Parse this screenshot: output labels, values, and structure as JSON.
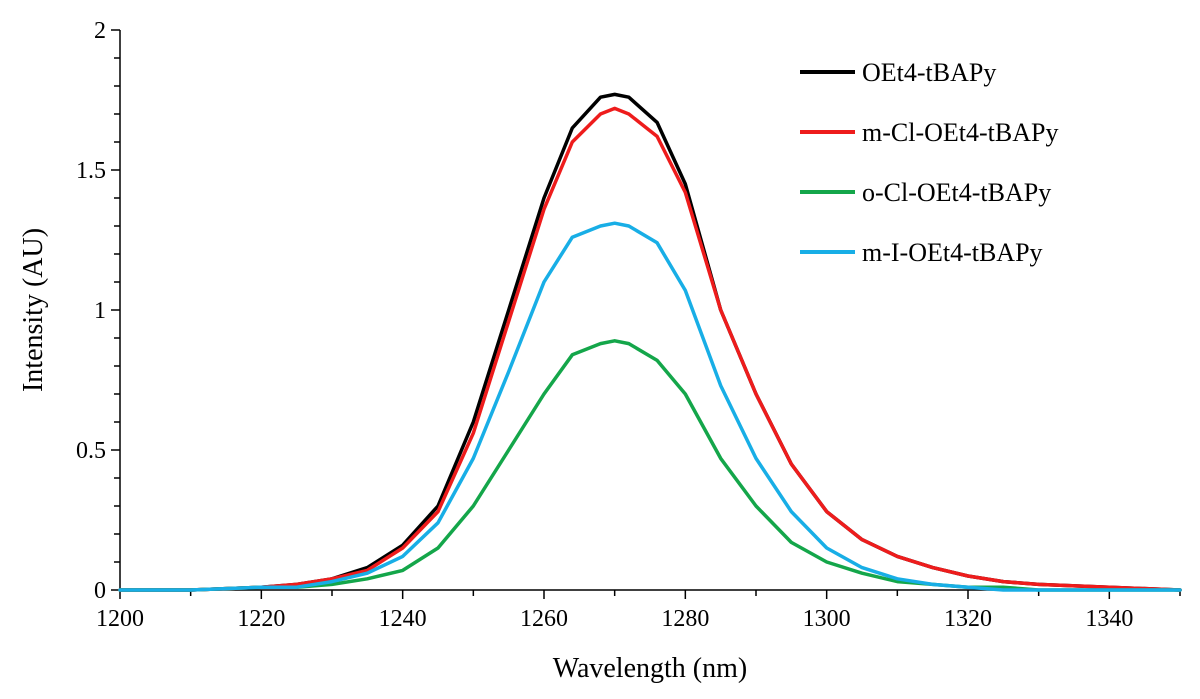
{
  "chart_data": {
    "type": "line",
    "title": "",
    "xlabel": "Wavelength (nm)",
    "ylabel": "Intensity (AU)",
    "xlim": [
      1200,
      1350
    ],
    "ylim": [
      0,
      2
    ],
    "x_ticks": [
      1200,
      1220,
      1240,
      1260,
      1280,
      1300,
      1320,
      1340
    ],
    "y_ticks": [
      0,
      0.5,
      1,
      1.5,
      2
    ],
    "y_tick_labels": [
      "0",
      "0.5",
      "1",
      "1.5",
      "2"
    ],
    "grid": false,
    "legend_position": "top-right",
    "x": [
      1200,
      1210,
      1220,
      1225,
      1230,
      1235,
      1240,
      1245,
      1250,
      1255,
      1260,
      1264,
      1268,
      1270,
      1272,
      1276,
      1280,
      1285,
      1290,
      1295,
      1300,
      1305,
      1310,
      1315,
      1320,
      1325,
      1330,
      1340,
      1350
    ],
    "series": [
      {
        "name": "OEt4-tBAPy",
        "color": "#000000",
        "values": [
          0.0,
          0.0,
          0.01,
          0.02,
          0.04,
          0.08,
          0.16,
          0.3,
          0.6,
          1.0,
          1.4,
          1.65,
          1.76,
          1.77,
          1.76,
          1.67,
          1.45,
          1.0,
          0.7,
          0.45,
          0.28,
          0.18,
          0.12,
          0.08,
          0.05,
          0.03,
          0.02,
          0.01,
          0.0
        ]
      },
      {
        "name": "m-Cl-OEt4-tBAPy",
        "color": "#ee1c1c",
        "values": [
          0.0,
          0.0,
          0.01,
          0.02,
          0.04,
          0.07,
          0.15,
          0.28,
          0.56,
          0.96,
          1.36,
          1.6,
          1.7,
          1.72,
          1.7,
          1.62,
          1.42,
          1.0,
          0.7,
          0.45,
          0.28,
          0.18,
          0.12,
          0.08,
          0.05,
          0.03,
          0.02,
          0.01,
          0.0
        ]
      },
      {
        "name": "o-Cl-OEt4-tBAPy",
        "color": "#14a64a",
        "values": [
          0.0,
          0.0,
          0.01,
          0.01,
          0.02,
          0.04,
          0.07,
          0.15,
          0.3,
          0.5,
          0.7,
          0.84,
          0.88,
          0.89,
          0.88,
          0.82,
          0.7,
          0.47,
          0.3,
          0.17,
          0.1,
          0.06,
          0.03,
          0.02,
          0.01,
          0.01,
          0.0,
          0.0,
          0.0
        ]
      },
      {
        "name": "m-I-OEt4-tBAPy",
        "color": "#18aee6",
        "values": [
          0.0,
          0.0,
          0.01,
          0.01,
          0.03,
          0.06,
          0.12,
          0.24,
          0.47,
          0.78,
          1.1,
          1.26,
          1.3,
          1.31,
          1.3,
          1.24,
          1.07,
          0.73,
          0.47,
          0.28,
          0.15,
          0.08,
          0.04,
          0.02,
          0.01,
          0.0,
          0.0,
          0.0,
          0.0
        ]
      }
    ]
  }
}
